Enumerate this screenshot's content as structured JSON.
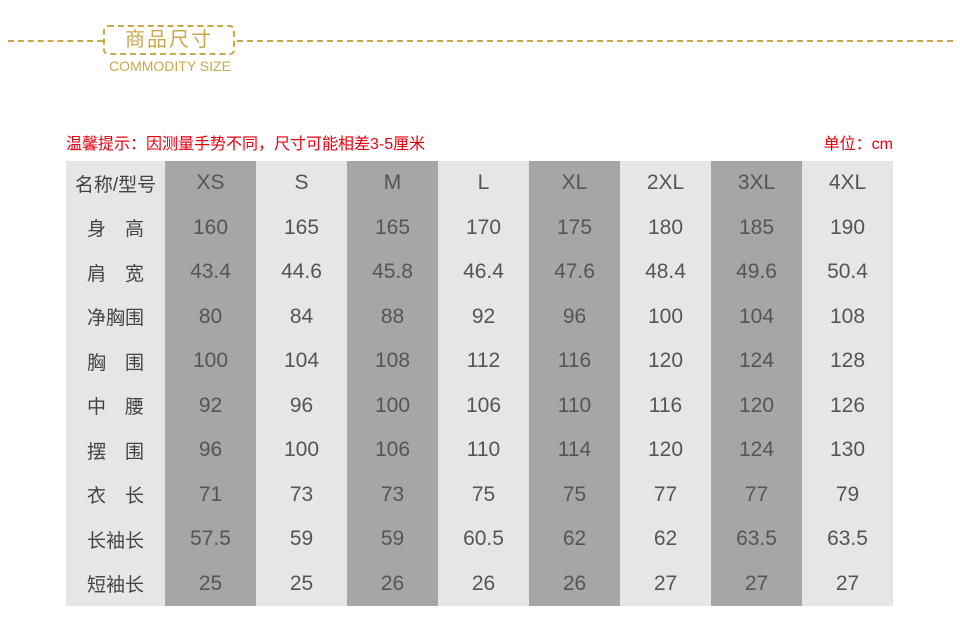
{
  "header": {
    "title": "商品尺寸",
    "subtitle": "COMMODITY SIZE",
    "accent_color": "#c9a84c"
  },
  "tip": "温馨提示：因测量手势不同，尺寸可能相差3-5厘米",
  "unit": "单位：cm",
  "table": {
    "header": [
      "名称/型号",
      "XS",
      "S",
      "M",
      "L",
      "XL",
      "2XL",
      "3XL",
      "4XL"
    ],
    "rows": [
      [
        "身　高",
        "160",
        "165",
        "165",
        "170",
        "175",
        "180",
        "185",
        "190"
      ],
      [
        "肩　宽",
        "43.4",
        "44.6",
        "45.8",
        "46.4",
        "47.6",
        "48.4",
        "49.6",
        "50.4"
      ],
      [
        "净胸围",
        "80",
        "84",
        "88",
        "92",
        "96",
        "100",
        "104",
        "108"
      ],
      [
        "胸　围",
        "100",
        "104",
        "108",
        "112",
        "116",
        "120",
        "124",
        "128"
      ],
      [
        "中　腰",
        "92",
        "96",
        "100",
        "106",
        "110",
        "116",
        "120",
        "126"
      ],
      [
        "摆　围",
        "96",
        "100",
        "106",
        "110",
        "114",
        "120",
        "124",
        "130"
      ],
      [
        "衣　长",
        "71",
        "73",
        "73",
        "75",
        "75",
        "77",
        "77",
        "79"
      ],
      [
        "长袖长",
        "57.5",
        "59",
        "59",
        "60.5",
        "62",
        "62",
        "63.5",
        "63.5"
      ],
      [
        "短袖长",
        "25",
        "25",
        "26",
        "26",
        "26",
        "27",
        "27",
        "27"
      ]
    ]
  }
}
